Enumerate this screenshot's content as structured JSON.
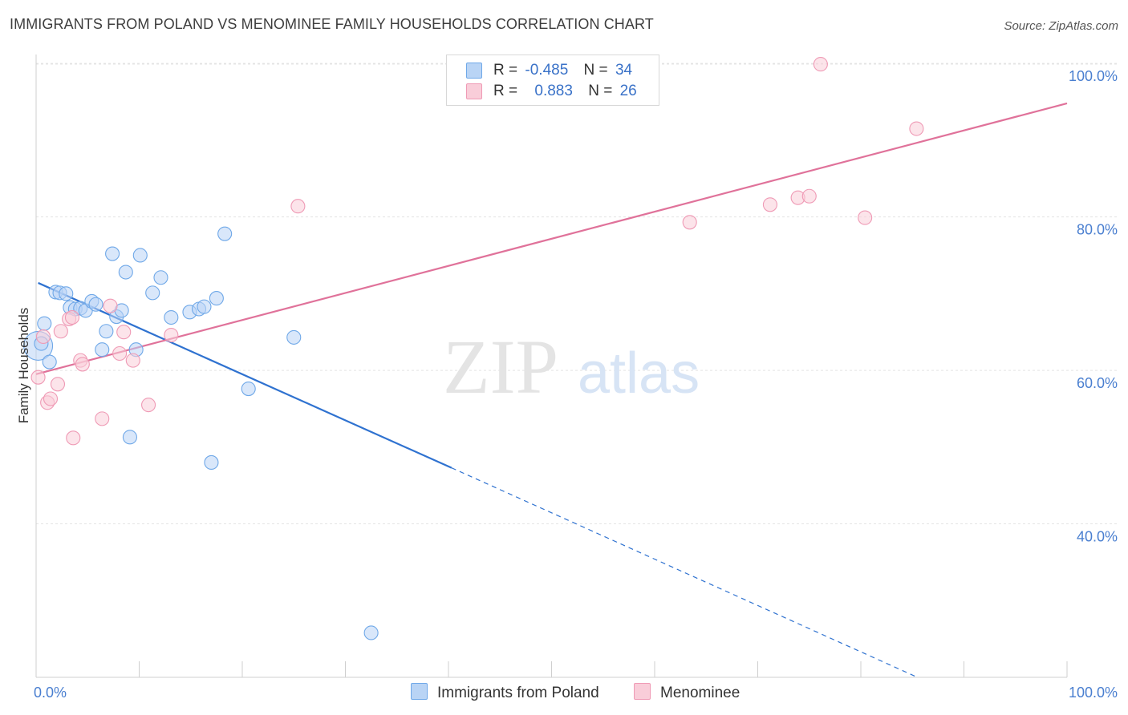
{
  "header": {
    "title": "IMMIGRANTS FROM POLAND VS MENOMINEE FAMILY HOUSEHOLDS CORRELATION CHART",
    "source": "Source: ZipAtlas.com"
  },
  "watermark": {
    "zip": "ZIP",
    "atlas": "atlas"
  },
  "colors": {
    "blue": "#6fa8e8",
    "blue_fill": "#b9d4f5",
    "blue_line": "#2f72d0",
    "pink": "#ef9ab5",
    "pink_fill": "#f9cdd9",
    "pink_line": "#e0729a",
    "tick_text": "#4a7fd0"
  },
  "legend_box": {
    "rows": [
      {
        "r_label": "R =",
        "r_value": "-0.485",
        "n_label": "N =",
        "n_value": "34"
      },
      {
        "r_label": "R =",
        "r_value": "0.883",
        "n_label": "N =",
        "n_value": "26"
      }
    ]
  },
  "chart_data": {
    "type": "scatter",
    "title": "IMMIGRANTS FROM POLAND VS MENOMINEE FAMILY HOUSEHOLDS CORRELATION CHART",
    "xlabel": "",
    "ylabel": "Family Households",
    "xlim": [
      0,
      100
    ],
    "ylim": [
      20,
      102
    ],
    "x_tick_labels": [
      "0.0%",
      "100.0%"
    ],
    "y_ticks": [
      40,
      60,
      80,
      100
    ],
    "y_tick_labels": [
      "40.0%",
      "60.0%",
      "80.0%",
      "100.0%"
    ],
    "grid": true,
    "legend_position": "bottom",
    "series": [
      {
        "name": "Immigrants from Poland",
        "color": "#6fa8e8",
        "points": [
          [
            0.2,
            63.2
          ],
          [
            0.8,
            66.1
          ],
          [
            1.3,
            61.1
          ],
          [
            1.9,
            70.2
          ],
          [
            2.3,
            70.1
          ],
          [
            2.9,
            70.0
          ],
          [
            3.3,
            68.2
          ],
          [
            3.8,
            68.0
          ],
          [
            4.3,
            68.1
          ],
          [
            4.8,
            67.8
          ],
          [
            5.4,
            69.0
          ],
          [
            5.8,
            68.6
          ],
          [
            6.4,
            62.7
          ],
          [
            6.8,
            65.1
          ],
          [
            7.4,
            75.2
          ],
          [
            7.8,
            67.0
          ],
          [
            8.3,
            67.8
          ],
          [
            8.7,
            72.8
          ],
          [
            9.1,
            51.3
          ],
          [
            9.7,
            62.7
          ],
          [
            10.1,
            75.0
          ],
          [
            11.3,
            70.1
          ],
          [
            12.1,
            72.1
          ],
          [
            13.1,
            66.9
          ],
          [
            14.9,
            67.6
          ],
          [
            15.8,
            68.0
          ],
          [
            16.3,
            68.3
          ],
          [
            17.0,
            48.0
          ],
          [
            17.5,
            69.4
          ],
          [
            18.3,
            77.8
          ],
          [
            20.6,
            57.6
          ],
          [
            25.0,
            64.3
          ],
          [
            32.5,
            25.8
          ],
          [
            0.5,
            63.5
          ]
        ],
        "trend": {
          "x0": 0.2,
          "y0": 71.4,
          "x1": 40.3,
          "y1": 47.3,
          "dashed_to_x": 85.5,
          "dashed_to_y": 20.0
        }
      },
      {
        "name": "Menominee",
        "color": "#ef9ab5",
        "points": [
          [
            0.2,
            59.1
          ],
          [
            0.7,
            64.4
          ],
          [
            1.1,
            55.8
          ],
          [
            1.4,
            56.3
          ],
          [
            2.1,
            58.2
          ],
          [
            2.4,
            65.1
          ],
          [
            3.2,
            66.7
          ],
          [
            3.5,
            66.9
          ],
          [
            3.6,
            51.2
          ],
          [
            4.3,
            61.3
          ],
          [
            4.5,
            60.8
          ],
          [
            6.4,
            53.7
          ],
          [
            7.2,
            68.4
          ],
          [
            8.1,
            62.2
          ],
          [
            8.5,
            65.0
          ],
          [
            9.4,
            61.3
          ],
          [
            10.9,
            55.5
          ],
          [
            13.1,
            64.6
          ],
          [
            25.4,
            81.4
          ],
          [
            63.4,
            79.3
          ],
          [
            71.2,
            81.6
          ],
          [
            73.9,
            82.5
          ],
          [
            75.0,
            82.7
          ],
          [
            76.1,
            99.9
          ],
          [
            80.4,
            79.9
          ],
          [
            85.4,
            91.5
          ]
        ],
        "trend": {
          "x0": 0.0,
          "y0": 59.5,
          "x1": 100.0,
          "y1": 94.8
        }
      }
    ]
  }
}
